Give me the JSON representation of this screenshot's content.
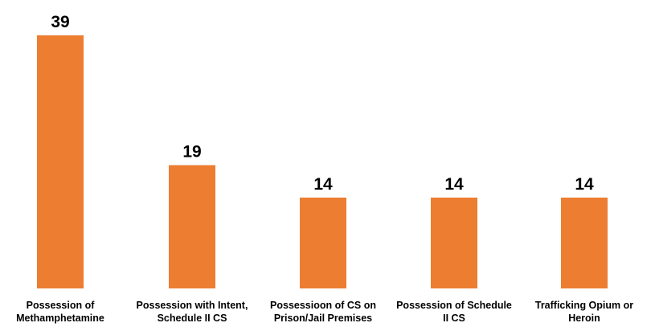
{
  "chart_data": {
    "type": "bar",
    "categories": [
      [
        "Possession of",
        "Methamphetamine"
      ],
      [
        "Possession with Intent,",
        "Schedule II CS"
      ],
      [
        "Possessioon of CS on",
        "Prison/Jail Premises"
      ],
      [
        "Possession of Schedule",
        "II CS"
      ],
      [
        "Trafficking Opium or",
        "Heroin"
      ]
    ],
    "values": [
      39,
      19,
      14,
      14,
      14
    ],
    "data_labels": [
      "39",
      "19",
      "14",
      "14",
      "14"
    ],
    "title": "",
    "xlabel": "",
    "ylabel": "",
    "ylim": [
      0,
      39
    ],
    "grid": false,
    "legend": "none",
    "colors": {
      "bar": "#ED7D31",
      "text": "#000000",
      "background": "#FFFFFF"
    }
  }
}
